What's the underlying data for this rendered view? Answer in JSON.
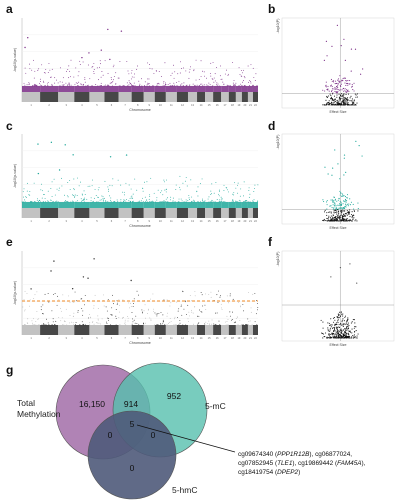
{
  "panels": [
    {
      "letter": "a",
      "type": "manhattan",
      "ylabel": "-log10(p-value)",
      "xlabel": "Chromosome",
      "highlight_color": "#7a2c86",
      "threshold_line": "solid",
      "base_color": "#bbbbbb",
      "alt_color": "#333333"
    },
    {
      "letter": "b",
      "type": "volcano",
      "ylabel": "-log10(P)",
      "xlabel": "Effect Size",
      "highlight_color": "#7a2c86"
    },
    {
      "letter": "c",
      "type": "manhattan",
      "ylabel": "-log10(p-value)",
      "xlabel": "Chromosome",
      "highlight_color": "#1fa89a",
      "threshold_line": "solid",
      "base_color": "#bbbbbb",
      "alt_color": "#333333"
    },
    {
      "letter": "d",
      "type": "volcano",
      "ylabel": "-log10(P)",
      "xlabel": "Effect Size",
      "highlight_color": "#1fa89a"
    },
    {
      "letter": "e",
      "type": "manhattan",
      "ylabel": "-log10(p-value)",
      "xlabel": "Chromosome",
      "highlight_color": "#555555",
      "threshold_line": "dashed",
      "threshold_color": "#f08a24",
      "base_color": "#bbbbbb",
      "alt_color": "#333333"
    },
    {
      "letter": "f",
      "type": "volcano",
      "ylabel": "-log10(P)",
      "xlabel": "Effect Size",
      "highlight_color": "#222222"
    }
  ],
  "chromosomes": [
    "1",
    "2",
    "3",
    "4",
    "5",
    "6",
    "7",
    "8",
    "9",
    "10",
    "11",
    "12",
    "13",
    "14",
    "15",
    "16",
    "17",
    "18",
    "19",
    "20",
    "21",
    "22"
  ],
  "venn": {
    "letter": "g",
    "sets": [
      {
        "label_lines": [
          "Total",
          "Methylation"
        ],
        "color": "#a776ad"
      },
      {
        "label_lines": [
          "5-mC"
        ],
        "color": "#56bfae"
      },
      {
        "label_lines": [
          "5-hmC"
        ],
        "color": "#4f5a7a"
      }
    ],
    "counts": {
      "total_only": "16,150",
      "total_mc": "914",
      "mc_only": "952",
      "total_hmc": "0",
      "mc_hmc": "0",
      "all_three": "5",
      "hmc_only": "0"
    },
    "annotation": {
      "line1": [
        "cg09674340 (",
        "PPP1R12B",
        "), cg06877024,"
      ],
      "line2": [
        "cg07852945 (",
        "TLE1",
        "), cg19869442 (",
        "FAM45A",
        "),"
      ],
      "line3": [
        "cg18419754 (",
        "DPEP2",
        ")"
      ]
    }
  }
}
